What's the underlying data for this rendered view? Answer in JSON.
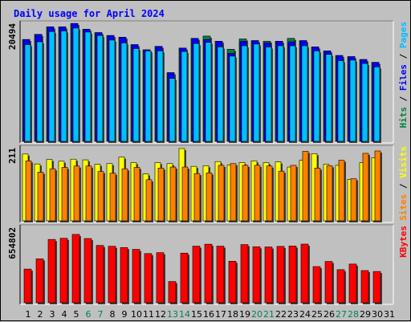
{
  "chart_data": {
    "type": "bar",
    "title": "Daily usage for April 2024",
    "categories": [
      "1",
      "2",
      "3",
      "4",
      "5",
      "6",
      "7",
      "8",
      "9",
      "10",
      "11",
      "12",
      "13",
      "14",
      "15",
      "16",
      "17",
      "18",
      "19",
      "20",
      "21",
      "22",
      "23",
      "24",
      "25",
      "26",
      "27",
      "28",
      "29",
      "30",
      "31"
    ],
    "weekend_days": [
      6,
      7,
      13,
      14,
      20,
      21,
      27,
      28
    ],
    "colors": {
      "title": "#0000FF",
      "hits": "#008040",
      "files": "#0000FF",
      "pages": "#00C0FF",
      "visits": "#FFFF00",
      "sites": "#FF8000",
      "kbytes": "#FF0000",
      "weekday_label": "#000000",
      "weekend_label": "#00805A",
      "separator": "#000000"
    },
    "panels": [
      {
        "id": "usage",
        "ymax_label": "20494",
        "legend": [
          {
            "text": "Hits",
            "color": "#008040"
          },
          {
            "text": "Files",
            "color": "#0000FF"
          },
          {
            "text": "Pages",
            "color": "#00C0FF"
          }
        ],
        "series": [
          {
            "name": "Hits",
            "values": [
              17800,
              18700,
              20000,
              20000,
              20600,
              19600,
              19000,
              18500,
              18200,
              16900,
              16000,
              16600,
              12000,
              16300,
              18000,
              18400,
              17500,
              16100,
              17900,
              17600,
              17500,
              17500,
              18000,
              17600,
              16500,
              15800,
              15000,
              14800,
              14300,
              13800,
              null
            ]
          },
          {
            "name": "Files",
            "values": [
              17800,
              18700,
              20000,
              20000,
              20600,
              19600,
              19000,
              18500,
              18200,
              16900,
              16000,
              16600,
              12000,
              16300,
              18000,
              17800,
              17500,
              15400,
              17500,
              17600,
              17200,
              17500,
              17400,
              17600,
              16500,
              15800,
              15000,
              14800,
              14300,
              13800,
              null
            ]
          },
          {
            "name": "Pages",
            "values": [
              16900,
              17400,
              19200,
              19300,
              19800,
              19100,
              18500,
              17700,
              17200,
              16200,
              15800,
              15800,
              11000,
              15700,
              17100,
              17300,
              16500,
              14900,
              16700,
              17000,
              16500,
              16700,
              16700,
              16700,
              15800,
              15200,
              14100,
              14200,
              13600,
              13000,
              null
            ]
          }
        ]
      },
      {
        "id": "visits",
        "ymax_label": "211",
        "legend": [
          {
            "text": "Sites",
            "color": "#FF8000"
          },
          {
            "text": "Visits",
            "color": "#FFFF00"
          }
        ],
        "series": [
          {
            "name": "Visits",
            "values": [
              195,
              166,
              179,
              174,
              180,
              178,
              165,
              167,
              186,
              170,
              137,
              170,
              167,
              211,
              159,
              161,
              173,
              163,
              170,
              175,
              170,
              172,
              157,
              177,
              196,
              165,
              162,
              121,
              170,
              184,
              null
            ]
          },
          {
            "name": "Sites",
            "values": [
              175,
              142,
              152,
              156,
              160,
              160,
              144,
              139,
              152,
              156,
              120,
              154,
              157,
              157,
              138,
              140,
              162,
              167,
              162,
              162,
              160,
              145,
              162,
              203,
              154,
              161,
              177,
              123,
              197,
              204,
              null
            ]
          }
        ]
      },
      {
        "id": "kbytes",
        "ymax_label": "654802",
        "legend": [
          {
            "text": "KBytes",
            "color": "#FF0000"
          }
        ],
        "series": [
          {
            "name": "KBytes",
            "values": [
              295000,
              385000,
              555000,
              565000,
              599000,
              563000,
              502000,
              495000,
              484000,
              468000,
              431000,
              439000,
              186000,
              435000,
              496000,
              513000,
              496000,
              364000,
              510000,
              491000,
              489000,
              494000,
              497000,
              514000,
              317000,
              362000,
              290000,
              339000,
              282000,
              274000,
              null
            ]
          }
        ]
      }
    ]
  }
}
